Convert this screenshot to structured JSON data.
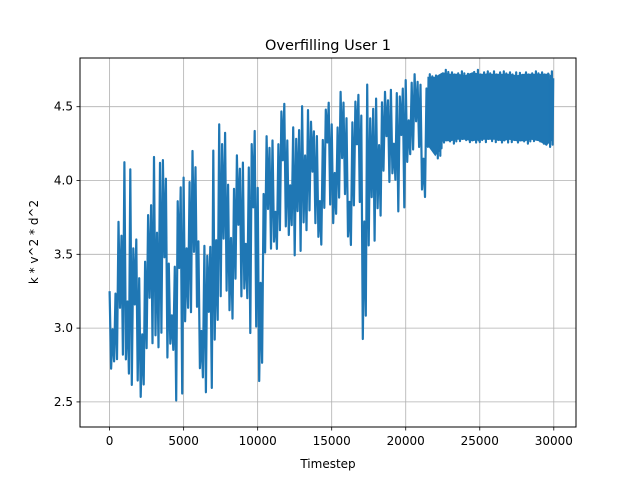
{
  "chart_data": {
    "type": "line",
    "title": "Overfilling User 1",
    "xlabel": "Timestep",
    "ylabel": "k * v^2 * d^2",
    "xlim": [
      -2000,
      31500
    ],
    "ylim": [
      2.33,
      4.83
    ],
    "x_ticks": [
      0,
      5000,
      10000,
      15000,
      20000,
      25000,
      30000
    ],
    "y_ticks": [
      2.5,
      3.0,
      3.5,
      4.0,
      4.5
    ],
    "x_tick_labels": [
      "0",
      "5000",
      "10000",
      "15000",
      "20000",
      "25000",
      "30000"
    ],
    "y_tick_labels": [
      "2.5",
      "3.0",
      "3.5",
      "4.0",
      "4.5"
    ],
    "grid": true,
    "line_color": "#1f77b4",
    "series": [
      {
        "x": [
          0,
          500,
          1000,
          1500,
          2000,
          2500,
          3000,
          3500,
          4000,
          4500,
          5000,
          5500,
          6000,
          6500,
          7000,
          7500,
          8000,
          8500,
          9000,
          9500,
          10000,
          10500,
          11000,
          11500,
          12000,
          12500,
          13000,
          13500,
          14000,
          14500,
          15000,
          15500,
          16000,
          16500,
          17000,
          17500,
          18000,
          18500,
          19000,
          19500,
          20000,
          20500,
          21000,
          21500,
          22000,
          22500,
          23000,
          23500,
          24000,
          24500,
          25000,
          25500,
          26000,
          26500,
          27000,
          27500,
          28000,
          28500,
          29000,
          29500
        ],
        "low": [
          2.7,
          2.68,
          2.62,
          2.6,
          2.52,
          2.78,
          2.85,
          2.78,
          2.8,
          2.44,
          3.0,
          2.98,
          2.62,
          2.55,
          2.9,
          3.12,
          3.05,
          3.2,
          3.12,
          2.9,
          2.58,
          3.42,
          3.5,
          3.65,
          3.62,
          3.42,
          3.65,
          3.7,
          3.5,
          3.78,
          3.68,
          3.8,
          3.52,
          3.82,
          2.9,
          3.48,
          3.75,
          3.98,
          3.95,
          3.75,
          4.1,
          4.15,
          3.85,
          4.22,
          4.15,
          4.25,
          4.25,
          4.26,
          4.26,
          4.25,
          4.26,
          4.26,
          4.26,
          4.25,
          4.26,
          4.25,
          4.25,
          4.26,
          4.25,
          4.22
        ],
        "high": [
          3.25,
          3.72,
          4.22,
          3.6,
          3.45,
          3.9,
          4.2,
          4.18,
          3.5,
          4.0,
          4.02,
          4.2,
          3.65,
          3.55,
          4.38,
          4.4,
          4.0,
          4.2,
          4.22,
          4.38,
          3.95,
          4.3,
          4.32,
          4.52,
          4.36,
          4.4,
          4.53,
          4.42,
          4.38,
          4.55,
          4.38,
          4.6,
          4.48,
          4.58,
          4.65,
          4.55,
          4.58,
          4.62,
          4.68,
          4.65,
          4.68,
          4.72,
          4.7,
          4.72,
          4.72,
          4.75,
          4.74,
          4.74,
          4.73,
          4.75,
          4.74,
          4.74,
          4.74,
          4.74,
          4.74,
          4.73,
          4.74,
          4.74,
          4.74,
          4.74
        ]
      }
    ]
  }
}
